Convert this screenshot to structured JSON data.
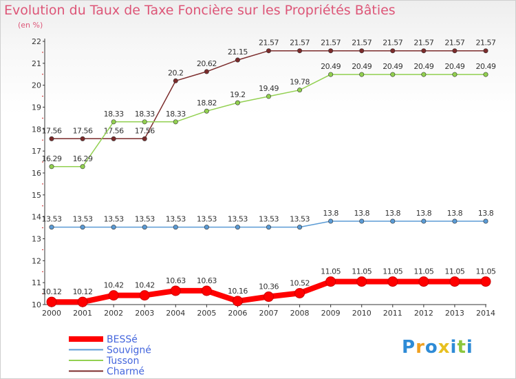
{
  "chart_data": {
    "type": "line",
    "title": "Evolution du Taux de Taxe Foncière sur les Propriétés Bâties",
    "subtitle": "(en %)",
    "x": [
      "2000",
      "2001",
      "2002",
      "2003",
      "2004",
      "2005",
      "2006",
      "2007",
      "2008",
      "2009",
      "2010",
      "2011",
      "2012",
      "2013",
      "2014"
    ],
    "ylim": [
      10,
      22
    ],
    "yticks": [
      "10",
      "11",
      "12",
      "13",
      "14",
      "15",
      "16",
      "17",
      "18",
      "19",
      "20",
      "21",
      "22"
    ],
    "grid": false,
    "legend_position": "bottom-left",
    "series": [
      {
        "name": "BESSé",
        "color": "#ff0000",
        "thick": true,
        "values": [
          10.12,
          10.12,
          10.42,
          10.42,
          10.63,
          10.63,
          10.16,
          10.36,
          10.52,
          11.05,
          11.05,
          11.05,
          11.05,
          11.05,
          11.05
        ],
        "labels": [
          "10.12",
          "10.12",
          "10.42",
          "10.42",
          "10.63",
          "10.63",
          "10.16",
          "10.36",
          "10.52",
          "11.05",
          "11.05",
          "11.05",
          "11.05",
          "11.05",
          "11.05"
        ]
      },
      {
        "name": "Souvigné",
        "color": "#5b9bd5",
        "thick": false,
        "values": [
          13.53,
          13.53,
          13.53,
          13.53,
          13.53,
          13.53,
          13.53,
          13.53,
          13.53,
          13.8,
          13.8,
          13.8,
          13.8,
          13.8,
          13.8
        ],
        "labels": [
          "13.53",
          "13.53",
          "13.53",
          "13.53",
          "13.53",
          "13.53",
          "13.53",
          "13.53",
          "13.53",
          "13.8",
          "13.8",
          "13.8",
          "13.8",
          "13.8",
          "13.8"
        ]
      },
      {
        "name": "Tusson",
        "color": "#92d050",
        "thick": false,
        "values": [
          16.29,
          16.29,
          18.33,
          18.33,
          18.33,
          18.82,
          19.2,
          19.49,
          19.78,
          20.49,
          20.49,
          20.49,
          20.49,
          20.49,
          20.49
        ],
        "labels": [
          "16.29",
          "16.29",
          "18.33",
          "18.33",
          "18.33",
          "18.82",
          "19.2",
          "19.49",
          "19.78",
          "20.49",
          "20.49",
          "20.49",
          "20.49",
          "20.49",
          "20.49"
        ]
      },
      {
        "name": "Charmé",
        "color": "#7b2b2b",
        "thick": false,
        "values": [
          17.56,
          17.56,
          17.56,
          17.56,
          20.2,
          20.62,
          21.15,
          21.57,
          21.57,
          21.57,
          21.57,
          21.57,
          21.57,
          21.57,
          21.57
        ],
        "labels": [
          "17.56",
          "17.56",
          "17.56",
          "17.56",
          "20.2",
          "20.62",
          "21.15",
          "21.57",
          "21.57",
          "21.57",
          "21.57",
          "21.57",
          "21.57",
          "21.57",
          "21.57"
        ]
      }
    ]
  },
  "brand": {
    "logo_letters": [
      "P",
      "r",
      "o",
      "x",
      "i",
      "t",
      "i"
    ],
    "logo_colors": [
      "#2e8bd6",
      "#f0a020",
      "#2e8bd6",
      "#e8c020",
      "#2e8bd6",
      "#8cc63e",
      "#2e8bd6"
    ]
  }
}
